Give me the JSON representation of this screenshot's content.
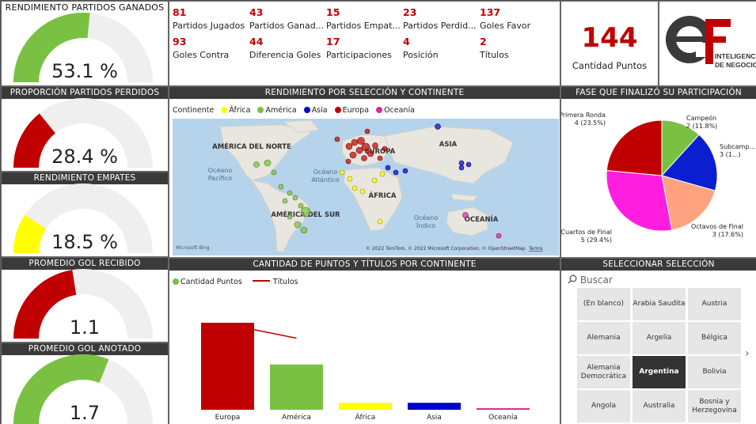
{
  "gauges": [
    {
      "title": "RENDIMIENTO PARTIDOS GANADOS",
      "value_label": "53.1 %",
      "fraction": 0.531,
      "color": "#7ac143"
    },
    {
      "title": "PROPORCIÓN PARTIDOS PERDIDOS",
      "value_label": "28.4 %",
      "fraction": 0.284,
      "color": "#c00000"
    },
    {
      "title": "RENDIMIENTO EMPATES",
      "value_label": "18.5 %",
      "fraction": 0.185,
      "color": "#ffff00"
    },
    {
      "title": "PROMEDIO GOL RECIBIDO",
      "value_label": "1.1",
      "fraction": 0.45,
      "color": "#c00000"
    },
    {
      "title": "PROMEDIO GOL ANOTADO",
      "value_label": "1.7",
      "fraction": 0.62,
      "color": "#7ac143"
    }
  ],
  "kpis": [
    {
      "value": "81",
      "label": "Partidos Jugados"
    },
    {
      "value": "43",
      "label": "Partidos Ganad..."
    },
    {
      "value": "15",
      "label": "Partidos Empat..."
    },
    {
      "value": "23",
      "label": "Partidos Perdid..."
    },
    {
      "value": "137",
      "label": "Goles Favor"
    },
    {
      "value": "93",
      "label": "Goles Contra"
    },
    {
      "value": "44",
      "label": "Diferencia Goles"
    },
    {
      "value": "17",
      "label": "Participaciones"
    },
    {
      "value": "4",
      "label": "Posición"
    },
    {
      "value": "2",
      "label": "Títulos"
    }
  ],
  "points_card": {
    "value": "144",
    "label": "Cantidad Puntos"
  },
  "logo": {
    "text_line1": "INTELIGENCIA",
    "text_line2": "DE NEGOCIOS"
  },
  "map": {
    "title": "RENDIMIENTO POR SELECCIÓN Y CONTINENTE",
    "legend_title": "Continente",
    "legend": [
      {
        "name": "África",
        "color": "#ffff00"
      },
      {
        "name": "América",
        "color": "#7ac143"
      },
      {
        "name": "Asia",
        "color": "#0000cc"
      },
      {
        "name": "Europa",
        "color": "#c00000"
      },
      {
        "name": "Oceanía",
        "color": "#e0279a"
      }
    ],
    "labels": {
      "na": "AMÉRICA DEL NORTE",
      "sa": "AMÉRICA DEL SUR",
      "eu": "EUROPA",
      "asia": "ASIA",
      "africa": "ÁFRICA",
      "oceania": "OCEANÍA",
      "pacific": "Océano\nPacífico",
      "atlantic": "Océano\nAtlántico",
      "indian": "Océano\nÍndico"
    },
    "copyright": "© 2022 TomTom, © 2022 Microsoft Corporation, © OpenStreetMap",
    "terms": "Terms",
    "bing": "Microsoft Bing"
  },
  "pie": {
    "title": "FASE QUE FINALIZÓ SU PARTICIPACIÓN",
    "chart_data": {
      "type": "pie",
      "slices": [
        {
          "name": "Campeón",
          "value": 2,
          "label": "2 (11.8%)",
          "color": "#7ac143"
        },
        {
          "name": "Subcamp...",
          "value": 3,
          "label": "3 (1...)",
          "color": "#0b1fd1"
        },
        {
          "name": "Octavos de Final",
          "value": 3,
          "label": "3 (17.6%)",
          "color": "#ffa27f"
        },
        {
          "name": "Cuartos de Final",
          "value": 5,
          "label": "5 (29.4%)",
          "color": "#ff1de0"
        },
        {
          "name": "Primera Ronda",
          "value": 4,
          "label": "4 (23.5%)",
          "color": "#c00000"
        }
      ]
    }
  },
  "combo": {
    "title": "CANTIDAD DE PUNTOS Y TÍTULOS POR CONTINENTE",
    "legend_bar": "Cantidad Puntos",
    "legend_line": "Títulos",
    "chart_data": {
      "type": "bar",
      "categories": [
        "Europa",
        "América",
        "África",
        "Asia",
        "Oceanía"
      ],
      "series": [
        {
          "name": "Cantidad Puntos",
          "values": [
            100,
            52,
            8,
            8,
            1
          ]
        },
        {
          "name": "Títulos",
          "values": [
            12,
            9,
            0,
            0,
            0
          ]
        }
      ],
      "bar_colors": [
        "#c00000",
        "#7ac143",
        "#ffff00",
        "#0000cc",
        "#e0279a"
      ],
      "line_color": "#c00000"
    }
  },
  "slicer": {
    "title": "SELECCIONAR SELECCIÓN",
    "search_placeholder": "Buscar",
    "items": [
      "(En blanco)",
      "Arabia Saudita",
      "Austria",
      "Alemania",
      "Argelia",
      "Bélgica",
      "Alemania Democrática",
      "Argentina",
      "Bolivia",
      "Angola",
      "Australia",
      "Bosnia y Herzegovina"
    ],
    "selected": "Argentina"
  }
}
